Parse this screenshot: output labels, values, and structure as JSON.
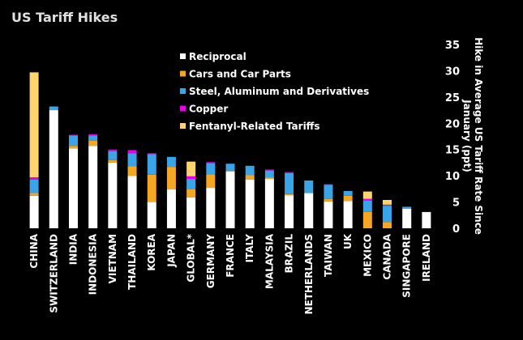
{
  "title": "US Tariff Hikes",
  "chart_data": {
    "type": "bar",
    "stacked": true,
    "title": "US Tariff Hikes",
    "ylabel": "Hike in Average US Tariff Rate Since January (ppt)",
    "ylim": [
      0,
      35
    ],
    "yticks": [
      0,
      5,
      10,
      15,
      20,
      25,
      30,
      35
    ],
    "y_axis_position": "right",
    "grid": false,
    "legend_position": "top-center",
    "categories": [
      "CHINA",
      "SWITZERLAND",
      "INDIA",
      "INDONESIA",
      "VIETNAM",
      "THAILAND",
      "KOREA",
      "JAPAN",
      "GLOBAL*",
      "GERMANY",
      "FRANCE",
      "ITALY",
      "MALAYSIA",
      "BRAZIL",
      "NETHERLANDS",
      "TAIWAN",
      "UK",
      "MEXICO",
      "CANADA",
      "SINGAPORE",
      "IRELAND"
    ],
    "series": [
      {
        "name": "Reciprocal",
        "color": "#ffffff",
        "values": [
          6.2,
          22.5,
          15.2,
          15.7,
          12.5,
          10.0,
          5.0,
          7.4,
          5.9,
          7.7,
          10.8,
          9.3,
          9.4,
          6.3,
          6.7,
          5.1,
          5.2,
          0,
          0,
          3.7,
          3.1
        ]
      },
      {
        "name": "Cars and Car Parts",
        "color": "#f5a623",
        "values": [
          0.5,
          0,
          0.5,
          1.0,
          0.5,
          1.8,
          5.2,
          4.3,
          1.5,
          2.6,
          0.2,
          0.8,
          0.3,
          0.2,
          0,
          0.5,
          1.0,
          3.1,
          1.2,
          0,
          0
        ]
      },
      {
        "name": "Steel, Aluminum and Derivatives",
        "color": "#3aa4e8",
        "values": [
          2.6,
          0.7,
          2.0,
          1.0,
          1.7,
          2.5,
          3.9,
          1.9,
          2.0,
          2.1,
          1.3,
          1.8,
          1.3,
          4.0,
          2.4,
          2.7,
          0.9,
          2.2,
          3.1,
          0.4,
          0
        ]
      },
      {
        "name": "Copper",
        "color": "#e600e6",
        "values": [
          0.4,
          0,
          0.1,
          0.2,
          0.3,
          0.6,
          0.2,
          0,
          0.5,
          0.2,
          0,
          0,
          0.2,
          0.2,
          0,
          0.1,
          0,
          0.3,
          0.2,
          0,
          0
        ]
      },
      {
        "name": "Fentanyl-Related Tariffs",
        "color": "#ffd36e",
        "values": [
          20.0,
          0,
          0,
          0,
          0,
          0,
          0,
          0,
          2.8,
          0,
          0,
          0,
          0,
          0,
          0,
          0,
          0,
          1.4,
          0.9,
          0,
          0
        ]
      }
    ]
  }
}
